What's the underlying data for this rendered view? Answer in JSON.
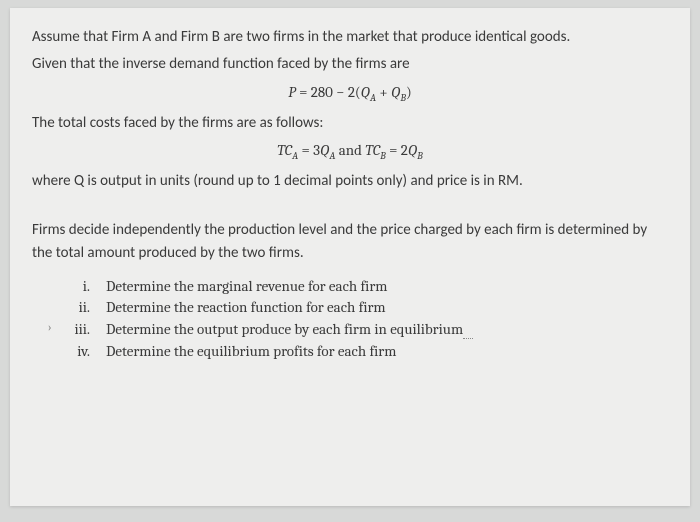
{
  "intro": {
    "line1": "Assume that Firm A and Firm B are two firms in the market that produce identical goods.",
    "line2": "Given that the inverse demand function faced by the firms are"
  },
  "equations": {
    "demand_lhs": "P",
    "demand_eq": "=",
    "demand_const": "280",
    "demand_minus": "−",
    "demand_coef": "2(",
    "demand_qa": "Q",
    "demand_sub_a": "A",
    "demand_plus": "+",
    "demand_qb": "Q",
    "demand_sub_b": "B",
    "demand_close": ")",
    "tc_a_lhs": "TC",
    "tc_a_sub": "A",
    "tc_a_eq": "=",
    "tc_a_rhs_coef": "3",
    "tc_a_rhs_q": "Q",
    "tc_a_rhs_sub": "A",
    "and": "and",
    "tc_b_lhs": "TC",
    "tc_b_sub": "B",
    "tc_b_eq": "=",
    "tc_b_rhs_coef": "2",
    "tc_b_rhs_q": "Q",
    "tc_b_rhs_sub": "B"
  },
  "costs_intro": "The total costs faced by the firms are as follows:",
  "note": "where Q is output in units (round up to 1 decimal points only) and price is in RM.",
  "decision": "Firms decide independently the production level and the price charged by each firm is determined by the total amount produced by the two firms.",
  "questions": [
    {
      "num": "i.",
      "text": "Determine the marginal revenue for each firm"
    },
    {
      "num": "ii.",
      "text": "Determine the reaction function for each firm"
    },
    {
      "num": "iii.",
      "text": "Determine the output produce by each firm in equilibrium"
    },
    {
      "num": "iv.",
      "text": "Determine the equilibrium profits for each firm"
    }
  ],
  "colors": {
    "page_bg": "#eeeeed",
    "outer_bg": "#d8d9d8",
    "text": "#3a3a3a"
  }
}
